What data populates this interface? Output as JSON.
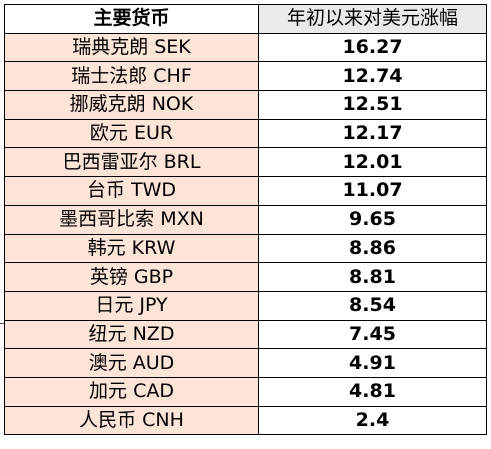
{
  "table": {
    "headers": {
      "currency": "主要货币",
      "ytd_gain": "年初以来对美元涨幅"
    },
    "rows": [
      {
        "currency": "瑞典克朗 SEK",
        "value": "16.27"
      },
      {
        "currency": "瑞士法郎 CHF",
        "value": "12.74"
      },
      {
        "currency": "挪威克朗 NOK",
        "value": "12.51"
      },
      {
        "currency": "欧元 EUR",
        "value": "12.17"
      },
      {
        "currency": "巴西雷亚尔 BRL",
        "value": "12.01"
      },
      {
        "currency": "台币 TWD",
        "value": "11.07"
      },
      {
        "currency": "墨西哥比索 MXN",
        "value": "9.65"
      },
      {
        "currency": "韩元 KRW",
        "value": "8.86"
      },
      {
        "currency": "英镑 GBP",
        "value": "8.81"
      },
      {
        "currency": "日元 JPY",
        "value": "8.54"
      },
      {
        "currency": "纽元 NZD",
        "value": "7.45"
      },
      {
        "currency": "澳元 AUD",
        "value": "4.91"
      },
      {
        "currency": "加元  CAD",
        "value": "4.81"
      },
      {
        "currency": "人民币 CNH",
        "value": "2.4"
      }
    ]
  },
  "colors": {
    "name_column_fill": "#fce4d6",
    "header_value_fill": "#eaeaea",
    "value_column_fill": "#ffffff",
    "border": "#000000"
  }
}
